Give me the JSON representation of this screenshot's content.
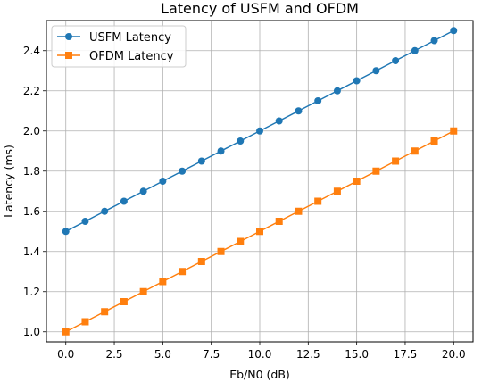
{
  "chart_data": {
    "type": "line",
    "title": "Latency of USFM and OFDM",
    "xlabel": "Eb/N0 (dB)",
    "ylabel": "Latency (ms)",
    "xlim": [
      -1.0,
      21.0
    ],
    "ylim": [
      0.95,
      2.55
    ],
    "x_ticks": [
      "0.0",
      "2.5",
      "5.0",
      "7.5",
      "10.0",
      "12.5",
      "15.0",
      "17.5",
      "20.0"
    ],
    "x_tick_values": [
      0,
      2.5,
      5,
      7.5,
      10,
      12.5,
      15,
      17.5,
      20
    ],
    "y_ticks": [
      "1.0",
      "1.2",
      "1.4",
      "1.6",
      "1.8",
      "2.0",
      "2.2",
      "2.4"
    ],
    "y_tick_values": [
      1.0,
      1.2,
      1.4,
      1.6,
      1.8,
      2.0,
      2.2,
      2.4
    ],
    "grid": true,
    "legend_position": "top-left",
    "x": [
      0,
      1,
      2,
      3,
      4,
      5,
      6,
      7,
      8,
      9,
      10,
      11,
      12,
      13,
      14,
      15,
      16,
      17,
      18,
      19,
      20
    ],
    "series": [
      {
        "name": "USFM Latency",
        "color": "#1f77b4",
        "marker": "circle",
        "values": [
          1.5,
          1.55,
          1.6,
          1.65,
          1.7,
          1.75,
          1.8,
          1.85,
          1.9,
          1.95,
          2.0,
          2.05,
          2.1,
          2.15,
          2.2,
          2.25,
          2.3,
          2.35,
          2.4,
          2.45,
          2.5
        ]
      },
      {
        "name": "OFDM Latency",
        "color": "#ff7f0e",
        "marker": "square",
        "values": [
          1.0,
          1.05,
          1.1,
          1.15,
          1.2,
          1.25,
          1.3,
          1.35,
          1.4,
          1.45,
          1.5,
          1.55,
          1.6,
          1.65,
          1.7,
          1.75,
          1.8,
          1.85,
          1.9,
          1.95,
          2.0
        ]
      }
    ]
  }
}
